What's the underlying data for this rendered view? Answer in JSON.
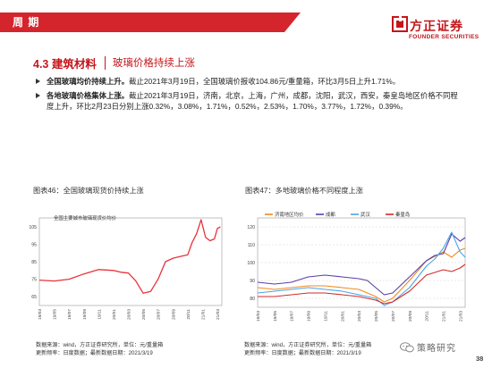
{
  "header": {
    "title": "周 期"
  },
  "logo": {
    "cn": "方正证券",
    "en": "FOUNDER SECURITIES"
  },
  "section": {
    "number": "4.3 建筑材料",
    "subtitle": "玻璃价格持续上涨"
  },
  "bullets": [
    {
      "bold": "全国玻璃均价持续上升。",
      "text": "截止2021年3月19日，全国玻璃价报收104.86元/重量箱，环比3月5日上升1.71%。"
    },
    {
      "bold": "各地玻璃价格集体上涨。",
      "text": "截止2021年3月19日，济南，北京，上海，广州，成都，沈阳，武汉，西安，秦皇岛地区价格不同程度上升，环比2月23日分别上涨0.32%，3.08%，1.71%，0.52%，2.53%，1.70%，3.77%，1.72%，0.39%。"
    }
  ],
  "figures": [
    {
      "title": "图表46：全国玻璃现货价持续上涨"
    },
    {
      "title": "图表47：多地玻璃价格不同程度上涨"
    }
  ],
  "footers": [
    {
      "line1": "数据来源：wind，方正证券研究所，单位：元/重量箱",
      "line2": "更新频率：日度数据；最新数据日期：2021/3/19"
    },
    {
      "line1": "数据来源：wind，方正证券研究所，单位：元/重量箱",
      "line2": "更新频率：日度数据；最新数据日期：2021/3/19"
    }
  ],
  "watermark": {
    "text": "策略研究"
  },
  "page_number": "38",
  "colors": {
    "brand_red": "#d4252c",
    "logo_red": "#c4161c"
  },
  "chart_data": [
    {
      "type": "line",
      "title": "全国主要城市玻璃现货价均价",
      "ylim": [
        60,
        110
      ],
      "yticks": [
        65,
        75,
        85,
        95,
        105
      ],
      "x_ticks": [
        "19/03",
        "19/05",
        "19/07",
        "19/09",
        "19/11",
        "20/01",
        "20/03",
        "20/05",
        "20/07",
        "20/09",
        "20/11",
        "21/01",
        "21/03"
      ],
      "series": [
        {
          "name": "全国主要城市玻璃现货价均价",
          "color": "#e8323a",
          "x": [
            0,
            1,
            2,
            3,
            4,
            5,
            5.5,
            6,
            6.5,
            7,
            7.5,
            8,
            8.5,
            9,
            9.5,
            10,
            10.3,
            10.6,
            10.9,
            11.2,
            11.5,
            11.8,
            12,
            12.2
          ],
          "y": [
            74.5,
            74,
            75,
            78,
            80.5,
            80,
            79,
            78.5,
            74,
            67,
            68,
            75,
            85,
            87,
            88,
            89,
            96,
            101,
            109,
            99,
            97,
            98,
            104,
            104.9
          ]
        }
      ]
    },
    {
      "type": "line",
      "ylim": [
        75,
        125
      ],
      "yticks": [
        80,
        90,
        100,
        110,
        120
      ],
      "x_ticks": [
        "19/03",
        "19/05",
        "19/07",
        "19/09",
        "19/11",
        "20/01",
        "20/03",
        "20/05",
        "20/07",
        "20/09",
        "20/11",
        "21/01",
        "21/03"
      ],
      "series": [
        {
          "name": "济南地区均价",
          "color": "#f08a1c",
          "x": [
            0,
            1,
            2,
            3,
            4,
            5,
            6,
            7,
            7.5,
            8,
            9,
            10,
            11,
            11.5,
            12,
            12.3
          ],
          "y": [
            86,
            85,
            86,
            87,
            87,
            86,
            85,
            81,
            78,
            80,
            90,
            101,
            106,
            103,
            107,
            108
          ]
        },
        {
          "name": "成都",
          "color": "#5a3da8",
          "x": [
            0,
            1,
            2,
            3,
            4,
            5,
            6,
            6.5,
            7,
            7.5,
            8,
            9,
            10,
            10.5,
            11,
            11.5,
            12,
            12.3
          ],
          "y": [
            89,
            88,
            89,
            92,
            93,
            92,
            91,
            90,
            86,
            82,
            83,
            92,
            101,
            104,
            105,
            116,
            112,
            114
          ]
        },
        {
          "name": "武汉",
          "color": "#4aa3e8",
          "x": [
            0,
            1,
            2,
            3,
            4,
            5,
            6,
            7,
            7.5,
            8,
            9,
            10,
            10.5,
            11,
            11.5,
            12,
            12.3
          ],
          "y": [
            83,
            84,
            85,
            86,
            85,
            84,
            82,
            80,
            76,
            78,
            86,
            98,
            102,
            108,
            117,
            106,
            103
          ]
        },
        {
          "name": "秦皇岛",
          "color": "#d42a2a",
          "x": [
            0,
            1,
            2,
            3,
            4,
            5,
            6,
            7,
            7.5,
            8,
            9,
            10,
            11,
            11.5,
            12,
            12.3
          ],
          "y": [
            81,
            81,
            82,
            83,
            83,
            82,
            81,
            79,
            77,
            78,
            84,
            93,
            96,
            95,
            97,
            99
          ]
        }
      ]
    }
  ]
}
